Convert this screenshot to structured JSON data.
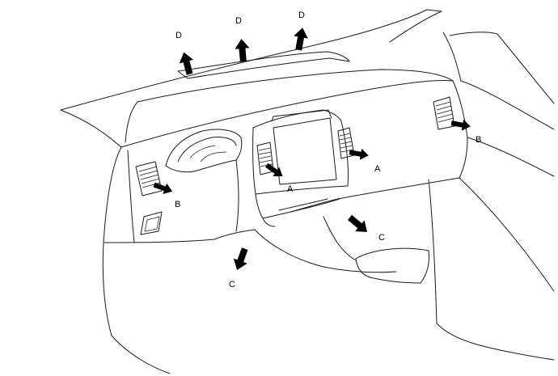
{
  "diagram": {
    "labels": {
      "defroster": [
        "D",
        "D",
        "D"
      ],
      "center_vent_left": "A",
      "center_vent_right": "A",
      "side_vent_left": "B",
      "side_vent_right": "B",
      "foot_left": "C",
      "foot_right": "C"
    },
    "colors": {
      "line": "#1a1a1a",
      "arrow": "#000000",
      "background": "#ffffff"
    },
    "arrow_icon": "bold-flow-arrow"
  }
}
